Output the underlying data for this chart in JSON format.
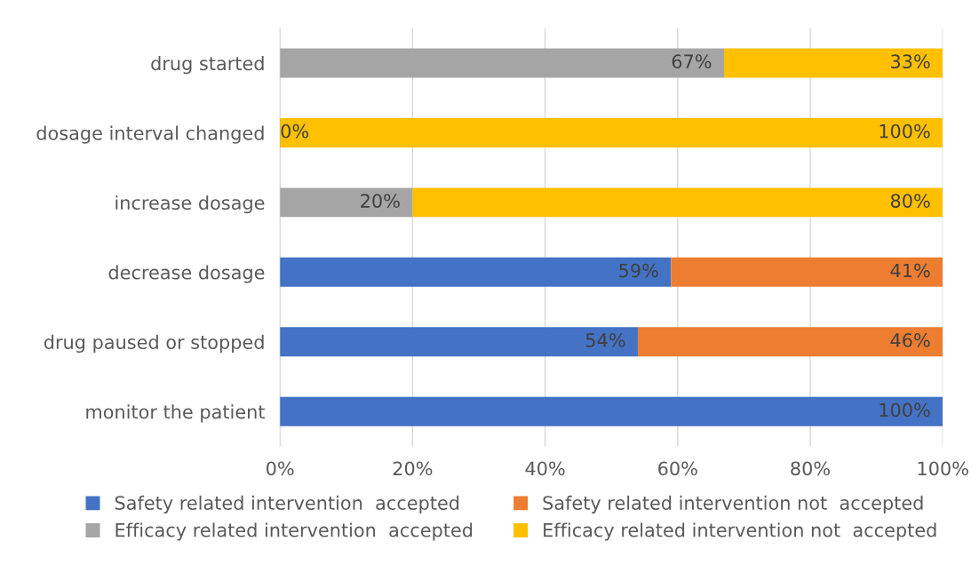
{
  "chart_data": {
    "type": "bar",
    "orientation": "horizontal",
    "stacked": true,
    "categories": [
      "drug started",
      "dosage interval changed",
      "increase dosage",
      "decrease dosage",
      "drug paused or stopped",
      "monitor the patient"
    ],
    "series": [
      {
        "name": "Safety related intervention  accepted",
        "color": "#4472c4",
        "values": [
          null,
          null,
          null,
          59,
          54,
          100
        ],
        "value_labels": [
          null,
          null,
          null,
          "59%",
          "54%",
          "100%"
        ]
      },
      {
        "name": "Safety related intervention not  accepted",
        "color": "#ed7d31",
        "values": [
          null,
          null,
          null,
          41,
          46,
          null
        ],
        "value_labels": [
          null,
          null,
          null,
          "41%",
          "46%",
          null
        ]
      },
      {
        "name": "Efficacy related intervention  accepted",
        "color": "#a5a5a5",
        "values": [
          67,
          0,
          20,
          null,
          null,
          null
        ],
        "value_labels": [
          "67%",
          "0%",
          "20%",
          null,
          null,
          null
        ]
      },
      {
        "name": "Efficacy related intervention not  accepted",
        "color": "#ffc000",
        "values": [
          33,
          100,
          80,
          null,
          null,
          null
        ],
        "value_labels": [
          "33%",
          "100%",
          "80%",
          null,
          null,
          null
        ]
      }
    ],
    "xlim": [
      0,
      100
    ],
    "xticks": [
      {
        "value": 0,
        "label": "0%"
      },
      {
        "value": 20,
        "label": "20%"
      },
      {
        "value": 40,
        "label": "40%"
      },
      {
        "value": 60,
        "label": "60%"
      },
      {
        "value": 80,
        "label": "80%"
      },
      {
        "value": 100,
        "label": "100%"
      }
    ],
    "grid": "x",
    "legend": "bottom"
  }
}
